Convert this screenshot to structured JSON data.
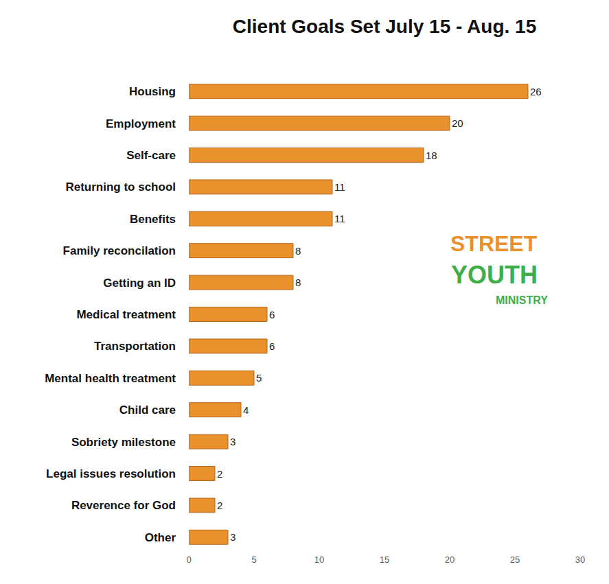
{
  "chart_data": {
    "type": "bar",
    "orientation": "horizontal",
    "title": "Client Goals Set July 15 - Aug. 15",
    "categories": [
      "Housing",
      "Employment",
      "Self-care",
      "Returning to school",
      "Benefits",
      "Family reconcilation",
      "Getting an ID",
      "Medical treatment",
      "Transportation",
      "Mental health treatment",
      "Child care",
      "Sobriety milestone",
      "Legal issues resolution",
      "Reverence for God",
      "Other"
    ],
    "values": [
      26,
      20,
      18,
      11,
      11,
      8,
      8,
      6,
      6,
      5,
      4,
      3,
      2,
      2,
      3
    ],
    "color": "#e8912d",
    "xlim": [
      0,
      30
    ],
    "xticks": [
      0,
      5,
      10,
      15,
      20,
      25,
      30
    ],
    "grid": false,
    "data_labels": true,
    "annotations": [
      "STREET",
      "YOUTH",
      "MINISTRY"
    ]
  }
}
